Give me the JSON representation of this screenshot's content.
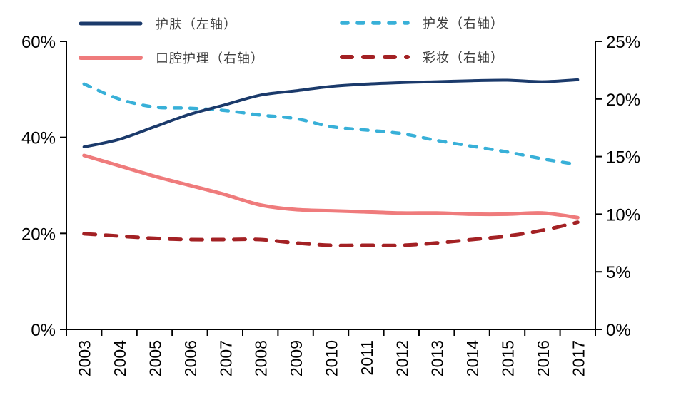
{
  "page": {
    "background": "#ffffff",
    "text_color": "#000000",
    "legend_text_color": "#3f3f3f"
  },
  "legend": {
    "position": "top",
    "item_order_series_index": [
      0,
      2,
      1,
      3
    ]
  },
  "chart_data": {
    "type": "line",
    "title": "",
    "xlabel": "",
    "ylabel_left": "",
    "ylabel_right": "",
    "grid": false,
    "legend_position": "top",
    "x": [
      "2003",
      "2004",
      "2005",
      "2006",
      "2007",
      "2008",
      "2009",
      "2010",
      "2011",
      "2012",
      "2013",
      "2014",
      "2015",
      "2016",
      "2017"
    ],
    "left_axis": {
      "min": 0,
      "max": 60,
      "tick_values": [
        0,
        20,
        40,
        60
      ],
      "tick_labels": [
        "0%",
        "20%",
        "40%",
        "60%"
      ]
    },
    "right_axis": {
      "min": 0,
      "max": 25,
      "tick_values": [
        0,
        5,
        10,
        15,
        20,
        25
      ],
      "tick_labels": [
        "0%",
        "5%",
        "10%",
        "15%",
        "20%",
        "25%"
      ]
    },
    "series": [
      {
        "id": "skincare",
        "name": "护肤（左轴）",
        "axis": "left",
        "line_style": "solid",
        "color": "#1b3a6b",
        "width": 4,
        "values": [
          38.0,
          39.6,
          42.2,
          44.8,
          46.8,
          48.8,
          49.7,
          50.6,
          51.1,
          51.4,
          51.6,
          51.8,
          51.9,
          51.6,
          52.0
        ]
      },
      {
        "id": "hair-care",
        "name": "护发（右轴）",
        "axis": "right",
        "line_style": "dashed",
        "color": "#38b0d8",
        "width": 4.5,
        "dash": [
          10,
          12
        ],
        "values": [
          21.3,
          20.0,
          19.3,
          19.2,
          19.0,
          18.6,
          18.3,
          17.6,
          17.3,
          17.0,
          16.4,
          15.9,
          15.4,
          14.8,
          14.3
        ]
      },
      {
        "id": "oral-care",
        "name": "口腔护理（右轴）",
        "axis": "right",
        "line_style": "solid",
        "color": "#ef7b7c",
        "width": 5,
        "values": [
          15.1,
          14.2,
          13.3,
          12.5,
          11.7,
          10.8,
          10.4,
          10.3,
          10.2,
          10.1,
          10.1,
          10.0,
          10.0,
          10.1,
          9.7
        ]
      },
      {
        "id": "makeup",
        "name": "彩妆（右轴）",
        "axis": "right",
        "line_style": "dashed",
        "color": "#a32124",
        "width": 5,
        "dash": [
          16,
          14
        ],
        "values": [
          8.3,
          8.1,
          7.9,
          7.8,
          7.8,
          7.8,
          7.5,
          7.3,
          7.3,
          7.3,
          7.5,
          7.8,
          8.1,
          8.6,
          9.3
        ]
      }
    ],
    "draw_order_series_index": [
      2,
      3,
      1,
      0
    ]
  }
}
